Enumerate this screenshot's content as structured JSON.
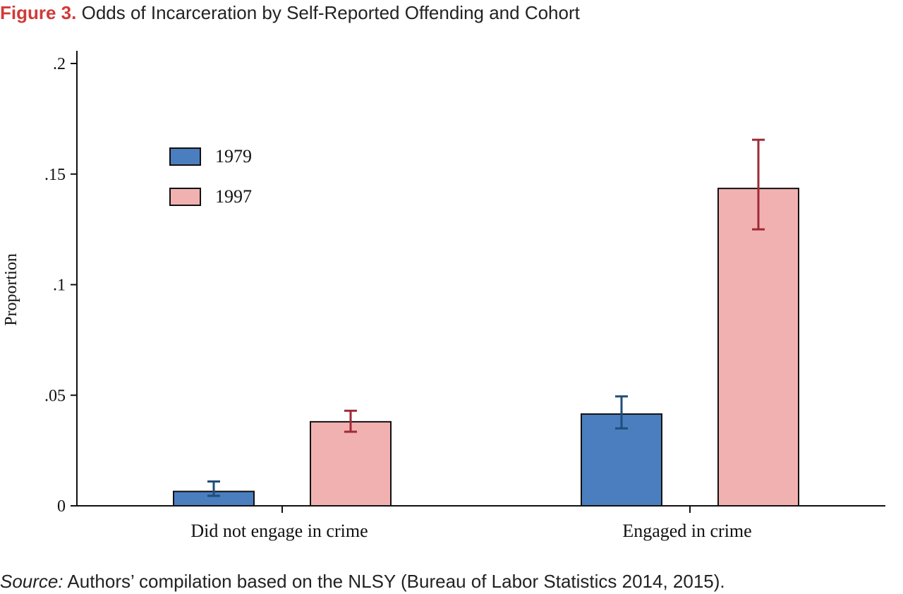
{
  "figure": {
    "label": "Figure 3.",
    "title": "Odds of Incarceration by Self-Reported Offending and Cohort"
  },
  "source": {
    "label": "Source:",
    "text": "Authors’ compilation based on the NLSY (Bureau of Labor Statistics 2014, 2015)."
  },
  "chart_data": {
    "type": "bar",
    "ylabel": "Proportion",
    "xlabel": "",
    "ylim": [
      0,
      0.2
    ],
    "yticks": [
      {
        "value": 0,
        "label": "0"
      },
      {
        "value": 0.05,
        "label": ".05"
      },
      {
        "value": 0.1,
        "label": ".1"
      },
      {
        "value": 0.15,
        "label": ".15"
      },
      {
        "value": 0.2,
        "label": ".2"
      }
    ],
    "categories": [
      "Did not engage in crime",
      "Engaged in crime"
    ],
    "series": [
      {
        "name": "1979",
        "color": "#4a7ebf",
        "error_color": "#1f4e79",
        "values": [
          0.0065,
          0.0415
        ],
        "ci_low": [
          0.0045,
          0.035
        ],
        "ci_high": [
          0.011,
          0.0495
        ]
      },
      {
        "name": "1997",
        "color": "#f2b1b1",
        "error_color": "#9e2a35",
        "values": [
          0.038,
          0.1435
        ],
        "ci_low": [
          0.0335,
          0.125
        ],
        "ci_high": [
          0.043,
          0.1655
        ]
      }
    ],
    "legend_position": "top-left",
    "grid": false
  }
}
